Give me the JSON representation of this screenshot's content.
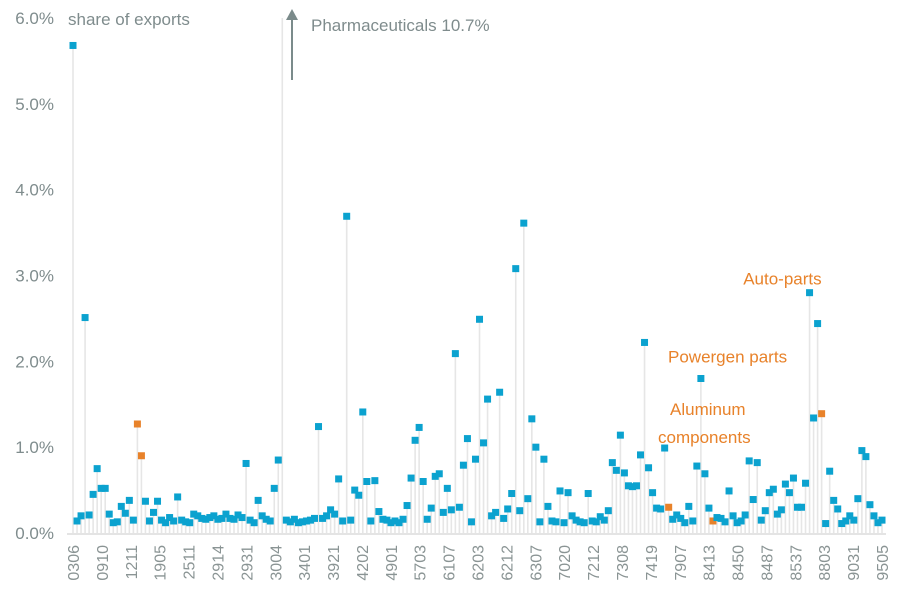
{
  "chart_data": {
    "type": "scatter",
    "style": "lollipop",
    "title": "",
    "ylabel": "share of exports",
    "xlabel": "",
    "ylim": [
      0,
      6.0
    ],
    "yticks": [
      "0.0%",
      "1.0%",
      "2.0%",
      "3.0%",
      "4.0%",
      "5.0%",
      "6.0%"
    ],
    "ytick_values": [
      0,
      1,
      2,
      3,
      4,
      5,
      6
    ],
    "grid": false,
    "xtick_labels": [
      "0306",
      "0910",
      "1211",
      "1905",
      "2511",
      "2914",
      "2931",
      "3004",
      "3401",
      "3921",
      "4202",
      "4901",
      "5703",
      "6107",
      "6203",
      "6212",
      "6307",
      "7020",
      "7212",
      "7308",
      "7419",
      "7907",
      "8413",
      "8450",
      "8487",
      "8537",
      "8803",
      "9031",
      "9505"
    ],
    "colors": {
      "default": "#0ba2cf",
      "highlight": "#e8822a",
      "stem": "#e6e6e6",
      "axis_text": "#7f8c8d",
      "arrow": "#7b8b8b"
    },
    "values": [
      5.68,
      0.14,
      0.2,
      2.51,
      0.21,
      0.45,
      0.75,
      0.52,
      0.52,
      0.22,
      0.12,
      0.13,
      0.31,
      0.23,
      0.38,
      0.15,
      1.27,
      0.9,
      0.37,
      0.14,
      0.24,
      0.37,
      0.15,
      0.12,
      0.18,
      0.14,
      0.42,
      0.15,
      0.13,
      0.12,
      0.22,
      0.2,
      0.17,
      0.16,
      0.18,
      0.2,
      0.16,
      0.17,
      0.22,
      0.17,
      0.16,
      0.21,
      0.18,
      0.81,
      0.15,
      0.12,
      0.38,
      0.2,
      0.16,
      0.14,
      0.52,
      0.85,
      10.7,
      0.15,
      0.13,
      0.16,
      0.12,
      0.13,
      0.14,
      0.15,
      0.17,
      1.24,
      0.17,
      0.2,
      0.27,
      0.22,
      0.63,
      0.14,
      3.69,
      0.15,
      0.5,
      0.44,
      1.41,
      0.6,
      0.14,
      0.61,
      0.25,
      0.16,
      0.15,
      0.12,
      0.14,
      0.12,
      0.16,
      0.32,
      0.64,
      1.08,
      1.23,
      0.6,
      0.16,
      0.29,
      0.66,
      0.69,
      0.24,
      0.52,
      0.27,
      2.09,
      0.3,
      0.79,
      1.1,
      0.13,
      0.86,
      2.49,
      1.05,
      1.56,
      0.2,
      0.24,
      1.64,
      0.17,
      0.28,
      0.46,
      3.08,
      0.26,
      3.61,
      0.4,
      1.33,
      1.0,
      0.13,
      0.86,
      0.31,
      0.14,
      0.13,
      0.49,
      0.12,
      0.47,
      0.2,
      0.15,
      0.13,
      0.12,
      0.46,
      0.14,
      0.13,
      0.19,
      0.15,
      0.26,
      0.82,
      0.73,
      1.14,
      0.7,
      0.55,
      0.54,
      0.55,
      0.91,
      2.22,
      0.76,
      0.47,
      0.29,
      0.28,
      0.99,
      0.3,
      0.16,
      0.21,
      0.17,
      0.12,
      0.31,
      0.14,
      0.78,
      1.8,
      0.69,
      0.29,
      0.14,
      0.18,
      0.17,
      0.13,
      0.49,
      0.2,
      0.12,
      0.14,
      0.21,
      0.84,
      0.39,
      0.82,
      0.15,
      0.26,
      0.47,
      0.51,
      0.22,
      0.27,
      0.57,
      0.47,
      0.64,
      0.3,
      0.3,
      0.58,
      2.8,
      1.34,
      2.44,
      1.39,
      0.11,
      0.72,
      0.38,
      0.28,
      0.11,
      0.14,
      0.2,
      0.15,
      0.4,
      0.96,
      0.89,
      0.33,
      0.2,
      0.12,
      0.15
    ],
    "highlighted_indices": [
      16,
      17,
      148,
      159,
      186
    ],
    "annotations": [
      {
        "text": "Pharmaceuticals 10.7%",
        "index": 52,
        "value": 10.7,
        "color": "#7f8c8d",
        "type": "off-chart-arrow"
      },
      {
        "text": "Auto-parts",
        "index": 186,
        "value": 2.8,
        "color": "#e8822a"
      },
      {
        "text": "Powergen parts",
        "index": 159,
        "value": 1.8,
        "color": "#e8822a"
      },
      {
        "text": "Aluminum",
        "index": 148,
        "value": 0.99,
        "color": "#e8822a",
        "line": 1
      },
      {
        "text": "components",
        "index": 148,
        "value": 0.99,
        "color": "#e8822a",
        "line": 2
      }
    ]
  }
}
